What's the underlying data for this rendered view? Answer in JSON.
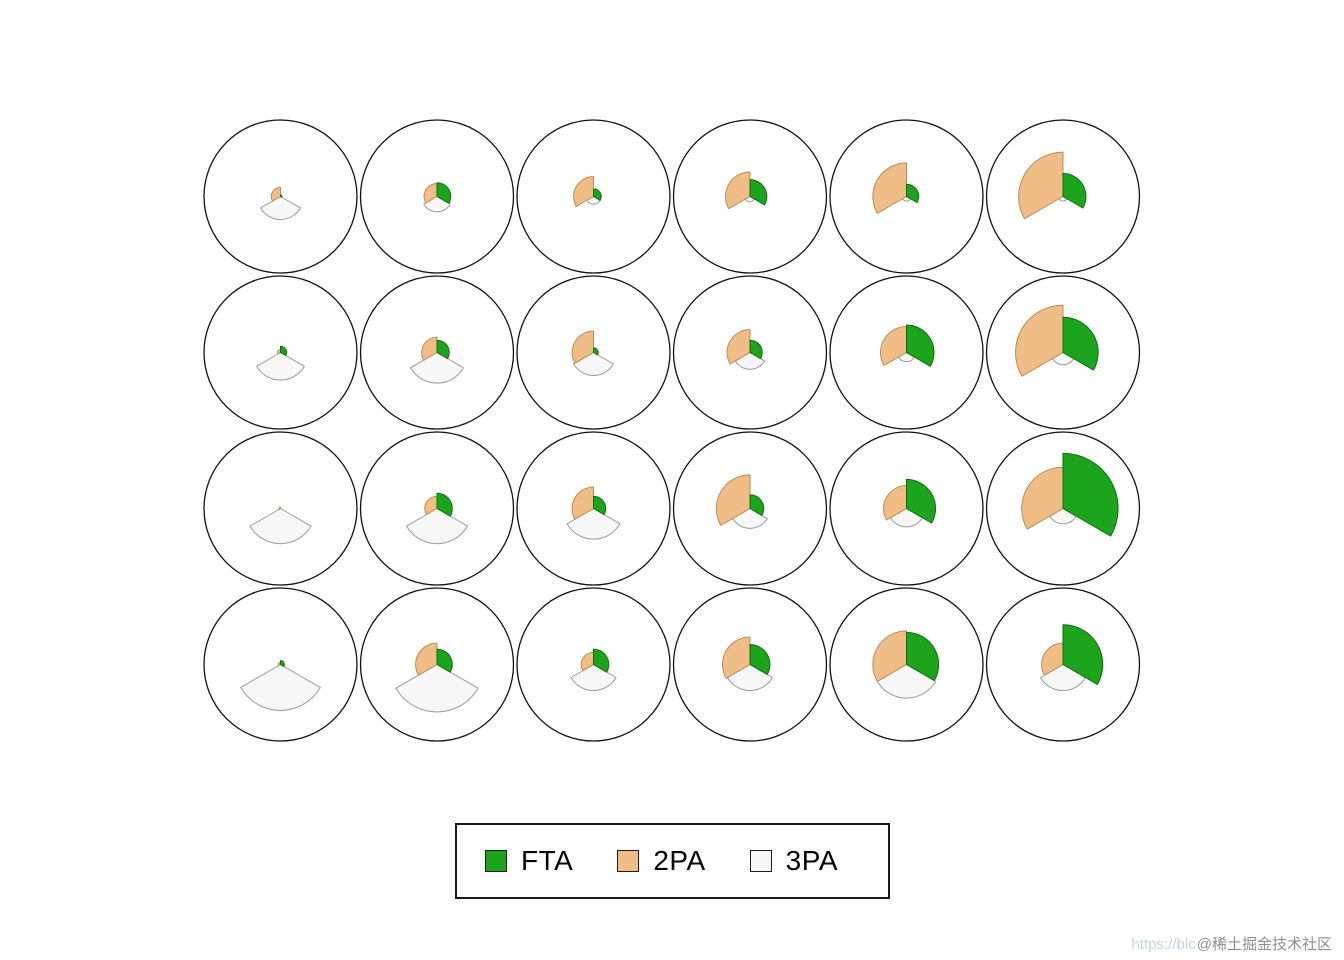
{
  "page": {
    "background": "#ffffff"
  },
  "legend": {
    "items": [
      {
        "label": "FTA",
        "color": "#1ca51c"
      },
      {
        "label": "2PA",
        "color": "#f0bd86"
      },
      {
        "label": "3PA",
        "color": "#f7f7f7"
      }
    ]
  },
  "watermark": {
    "url_text": "https://blog.c",
    "handle": "@稀土掘金技术社区"
  },
  "chart_data": {
    "type": "polar-area-grid",
    "description": "4x6 grid of coxcomb (polar-area) mini charts inside circles; each wedge radius encodes the relative magnitude of a shot-attempt category (FTA, 2PA, 3PA). 2PA grows left-to-right across columns, 3PA grows top-to-bottom across rows.",
    "grid": {
      "rows": 4,
      "cols": 6
    },
    "categories": [
      "FTA",
      "2PA",
      "3PA"
    ],
    "colors": {
      "FTA": "#1ca51c",
      "2PA": "#f0bd86",
      "3PA": "#f7f7f7"
    },
    "stroke_colors": {
      "FTA": "#0d6e0d",
      "2PA": "#b98d55",
      "3PA": "#9a9a9a"
    },
    "sector_angles_deg": {
      "FTA": [
        0,
        120
      ],
      "3PA": [
        120,
        240
      ],
      "2PA": [
        240,
        360
      ]
    },
    "draw_order": [
      "3PA",
      "2PA",
      "FTA"
    ],
    "value_unit": "fraction of circle radius",
    "cells": [
      {
        "row": 1,
        "col": 1,
        "values": {
          "FTA": 0.02,
          "2PA": 0.12,
          "3PA": 0.3
        }
      },
      {
        "row": 1,
        "col": 2,
        "values": {
          "FTA": 0.18,
          "2PA": 0.17,
          "3PA": 0.2
        }
      },
      {
        "row": 1,
        "col": 3,
        "values": {
          "FTA": 0.1,
          "2PA": 0.26,
          "3PA": 0.1
        }
      },
      {
        "row": 1,
        "col": 4,
        "values": {
          "FTA": 0.22,
          "2PA": 0.32,
          "3PA": 0.07
        }
      },
      {
        "row": 1,
        "col": 5,
        "values": {
          "FTA": 0.16,
          "2PA": 0.44,
          "3PA": 0.06
        }
      },
      {
        "row": 1,
        "col": 6,
        "values": {
          "FTA": 0.3,
          "2PA": 0.58,
          "3PA": 0.06
        }
      },
      {
        "row": 2,
        "col": 1,
        "values": {
          "FTA": 0.08,
          "2PA": 0.04,
          "3PA": 0.36
        }
      },
      {
        "row": 2,
        "col": 2,
        "values": {
          "FTA": 0.16,
          "2PA": 0.2,
          "3PA": 0.4
        }
      },
      {
        "row": 2,
        "col": 3,
        "values": {
          "FTA": 0.06,
          "2PA": 0.28,
          "3PA": 0.3
        }
      },
      {
        "row": 2,
        "col": 4,
        "values": {
          "FTA": 0.16,
          "2PA": 0.3,
          "3PA": 0.22
        }
      },
      {
        "row": 2,
        "col": 5,
        "values": {
          "FTA": 0.36,
          "2PA": 0.34,
          "3PA": 0.12
        }
      },
      {
        "row": 2,
        "col": 6,
        "values": {
          "FTA": 0.46,
          "2PA": 0.62,
          "3PA": 0.16
        }
      },
      {
        "row": 3,
        "col": 1,
        "values": {
          "FTA": 0.0,
          "2PA": 0.02,
          "3PA": 0.46
        }
      },
      {
        "row": 3,
        "col": 2,
        "values": {
          "FTA": 0.2,
          "2PA": 0.16,
          "3PA": 0.46
        }
      },
      {
        "row": 3,
        "col": 3,
        "values": {
          "FTA": 0.16,
          "2PA": 0.28,
          "3PA": 0.4
        }
      },
      {
        "row": 3,
        "col": 4,
        "values": {
          "FTA": 0.18,
          "2PA": 0.44,
          "3PA": 0.26
        }
      },
      {
        "row": 3,
        "col": 5,
        "values": {
          "FTA": 0.38,
          "2PA": 0.3,
          "3PA": 0.24
        }
      },
      {
        "row": 3,
        "col": 6,
        "values": {
          "FTA": 0.72,
          "2PA": 0.54,
          "3PA": 0.2
        }
      },
      {
        "row": 4,
        "col": 1,
        "values": {
          "FTA": 0.05,
          "2PA": 0.03,
          "3PA": 0.6
        }
      },
      {
        "row": 4,
        "col": 2,
        "values": {
          "FTA": 0.2,
          "2PA": 0.28,
          "3PA": 0.62
        }
      },
      {
        "row": 4,
        "col": 3,
        "values": {
          "FTA": 0.2,
          "2PA": 0.16,
          "3PA": 0.34
        }
      },
      {
        "row": 4,
        "col": 4,
        "values": {
          "FTA": 0.26,
          "2PA": 0.36,
          "3PA": 0.34
        }
      },
      {
        "row": 4,
        "col": 5,
        "values": {
          "FTA": 0.42,
          "2PA": 0.44,
          "3PA": 0.44
        }
      },
      {
        "row": 4,
        "col": 6,
        "values": {
          "FTA": 0.52,
          "2PA": 0.28,
          "3PA": 0.34
        }
      }
    ]
  }
}
